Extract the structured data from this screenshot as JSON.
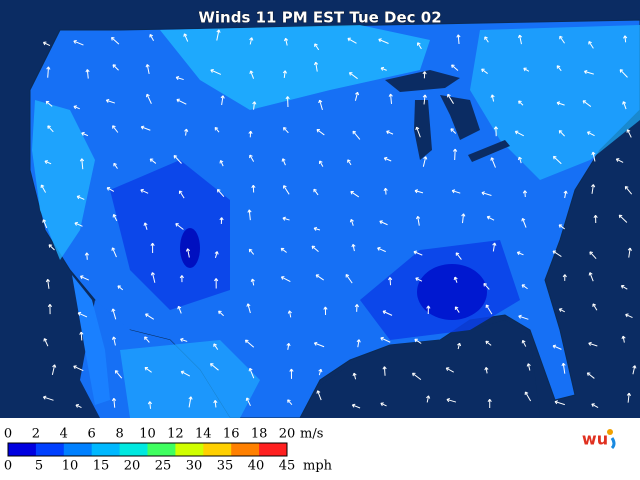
{
  "title": "Winds 11 PM EST Tue Dec 02",
  "legend": {
    "ms_ticks": [
      "0",
      "2",
      "4",
      "6",
      "8",
      "10",
      "12",
      "14",
      "16",
      "18",
      "20"
    ],
    "ms_unit": "m/s",
    "mph_ticks": [
      "0",
      "5",
      "10",
      "15",
      "20",
      "25",
      "30",
      "35",
      "40",
      "45"
    ],
    "mph_unit": "mph",
    "colors": [
      "#0000e0",
      "#0040ff",
      "#0080ff",
      "#00b8ff",
      "#00e8e0",
      "#40ff60",
      "#d0ff00",
      "#ffd000",
      "#ff8000",
      "#ff2020"
    ]
  }
}
